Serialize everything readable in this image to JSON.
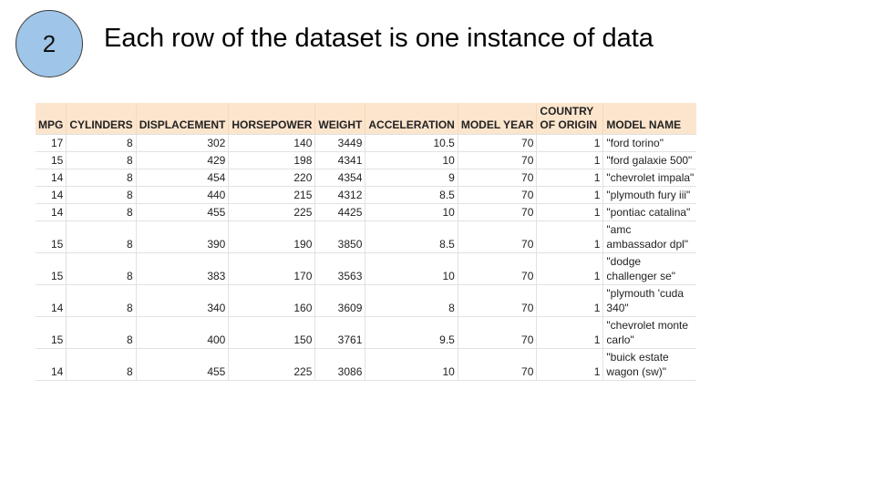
{
  "slide": {
    "number": "2",
    "title": "Each row of the dataset is one instance of data"
  },
  "table": {
    "headers": [
      "MPG",
      "CYLINDERS",
      "DISPLACEMENT",
      "HORSEPOWER",
      "WEIGHT",
      "ACCELERATION",
      "MODEL YEAR",
      "COUNTRY OF ORIGIN",
      "MODEL NAME"
    ],
    "rows": [
      [
        "17",
        "8",
        "302",
        "140",
        "3449",
        "10.5",
        "70",
        "1",
        "\"ford torino\""
      ],
      [
        "15",
        "8",
        "429",
        "198",
        "4341",
        "10",
        "70",
        "1",
        "\"ford galaxie 500\""
      ],
      [
        "14",
        "8",
        "454",
        "220",
        "4354",
        "9",
        "70",
        "1",
        "\"chevrolet impala\""
      ],
      [
        "14",
        "8",
        "440",
        "215",
        "4312",
        "8.5",
        "70",
        "1",
        "\"plymouth fury iii\""
      ],
      [
        "14",
        "8",
        "455",
        "225",
        "4425",
        "10",
        "70",
        "1",
        "\"pontiac catalina\""
      ],
      [
        "15",
        "8",
        "390",
        "190",
        "3850",
        "8.5",
        "70",
        "1",
        "\"amc ambassador dpl\""
      ],
      [
        "15",
        "8",
        "383",
        "170",
        "3563",
        "10",
        "70",
        "1",
        "\"dodge challenger se\""
      ],
      [
        "14",
        "8",
        "340",
        "160",
        "3609",
        "8",
        "70",
        "1",
        "\"plymouth 'cuda 340\""
      ],
      [
        "15",
        "8",
        "400",
        "150",
        "3761",
        "9.5",
        "70",
        "1",
        "\"chevrolet monte carlo\""
      ],
      [
        "14",
        "8",
        "455",
        "225",
        "3086",
        "10",
        "70",
        "1",
        "\"buick estate wagon (sw)\""
      ]
    ]
  }
}
